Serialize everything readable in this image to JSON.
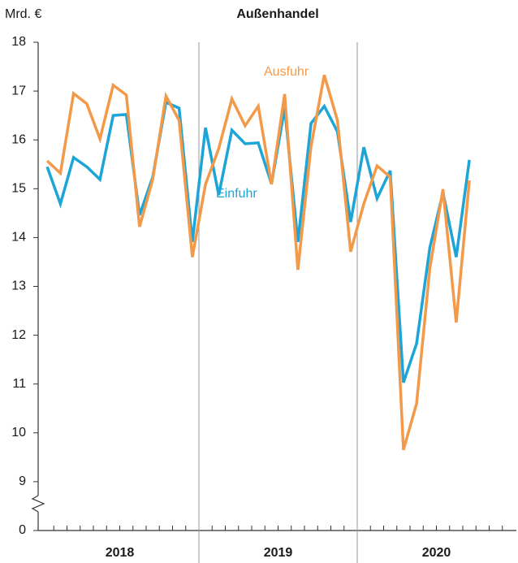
{
  "chart_data": {
    "type": "line",
    "title": "Außenhandel",
    "y_unit": "Mrd. €",
    "categories": [
      null,
      null,
      null,
      null,
      null,
      null,
      null,
      null,
      null,
      null,
      null,
      null,
      null,
      null,
      null,
      null,
      null,
      null,
      null,
      null,
      null,
      null,
      null,
      null,
      null,
      null,
      null,
      null,
      null,
      null,
      null,
      null,
      null,
      null,
      null,
      null
    ],
    "groups": [
      "2018",
      "2019",
      "2020"
    ],
    "series": [
      {
        "name": "Einfuhr",
        "color": "#1ca5d6",
        "values": [
          15.45,
          14.69,
          15.64,
          15.45,
          15.19,
          16.5,
          16.52,
          14.46,
          15.24,
          16.77,
          16.65,
          13.91,
          16.25,
          14.87,
          16.2,
          15.92,
          15.94,
          15.1,
          16.65,
          13.91,
          16.34,
          16.69,
          16.17,
          14.32,
          15.85,
          14.8,
          15.37,
          11.03,
          11.83,
          13.79,
          14.92,
          13.6,
          15.59,
          null,
          null,
          null
        ]
      },
      {
        "name": "Ausfuhr",
        "color": "#f39a4a",
        "values": [
          15.57,
          15.32,
          16.95,
          16.74,
          16.02,
          17.12,
          16.92,
          14.22,
          15.19,
          16.9,
          16.4,
          13.6,
          15.09,
          15.82,
          16.84,
          16.29,
          16.69,
          15.09,
          16.94,
          13.34,
          15.87,
          17.33,
          16.4,
          13.71,
          14.69,
          15.47,
          15.24,
          9.65,
          10.6,
          13.37,
          14.99,
          12.26,
          15.17,
          null,
          null,
          null
        ]
      }
    ],
    "ylim": [
      0,
      18
    ],
    "axis_break": [
      0,
      9
    ],
    "yticks": [
      0,
      9,
      10,
      11,
      12,
      13,
      14,
      15,
      16,
      17,
      18
    ]
  }
}
